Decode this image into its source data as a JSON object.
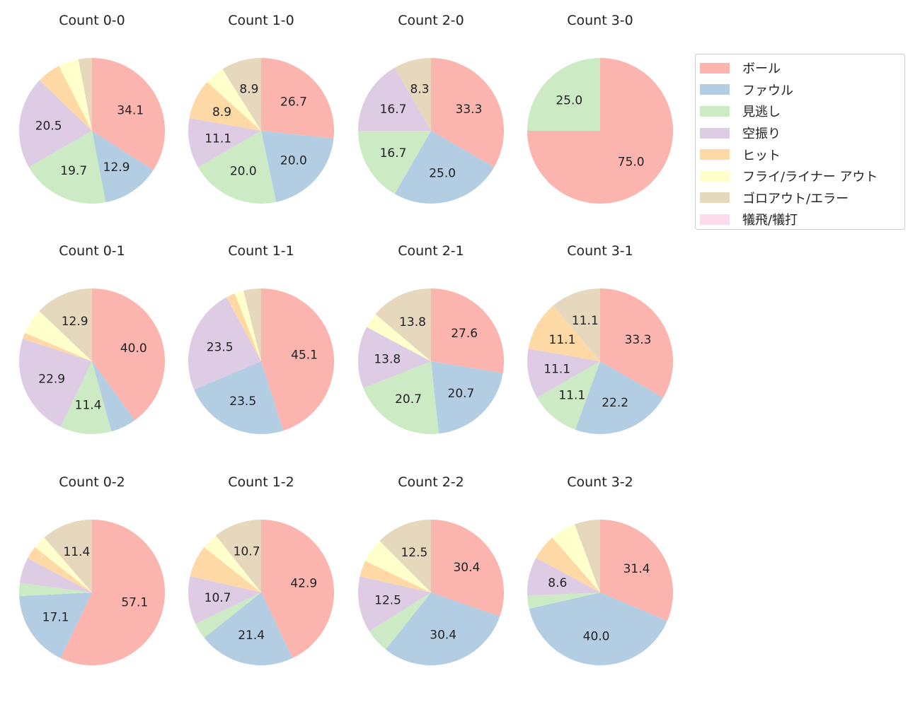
{
  "chart_data": {
    "type": "pie",
    "colors": [
      "#fbb4ae",
      "#b3cde3",
      "#ccebc5",
      "#decbe4",
      "#fed9a6",
      "#ffffcc",
      "#e5d8bd",
      "#fddaec"
    ],
    "categories": [
      "ボール",
      "ファウル",
      "見逃し",
      "空振り",
      "ヒット",
      "フライ/ライナー アウト",
      "ゴロアウト/エラー",
      "犠飛/犠打"
    ],
    "legend_position": "right",
    "charts": [
      {
        "title": "Count 0-0",
        "values": [
          34.1,
          12.9,
          19.7,
          20.5,
          5.3,
          4.5,
          3.0,
          0
        ]
      },
      {
        "title": "Count 1-0",
        "values": [
          26.7,
          20.0,
          20.0,
          11.1,
          8.9,
          4.4,
          8.9,
          0
        ]
      },
      {
        "title": "Count 2-0",
        "values": [
          33.3,
          25.0,
          16.7,
          16.7,
          0,
          0,
          8.3,
          0
        ]
      },
      {
        "title": "Count 3-0",
        "values": [
          75.0,
          0,
          25.0,
          0,
          0,
          0,
          0,
          0
        ]
      },
      {
        "title": "Count 0-1",
        "values": [
          40.0,
          5.7,
          11.4,
          22.9,
          1.4,
          5.7,
          12.9,
          0
        ]
      },
      {
        "title": "Count 1-1",
        "values": [
          45.1,
          23.5,
          0,
          23.5,
          2.0,
          2.0,
          3.9,
          0
        ]
      },
      {
        "title": "Count 2-1",
        "values": [
          27.6,
          20.7,
          20.7,
          13.8,
          0,
          3.4,
          13.8,
          0
        ]
      },
      {
        "title": "Count 3-1",
        "values": [
          33.3,
          22.2,
          11.1,
          11.1,
          11.1,
          0,
          11.1,
          0
        ]
      },
      {
        "title": "Count 0-2",
        "values": [
          57.1,
          17.1,
          2.9,
          5.7,
          2.9,
          2.9,
          11.4,
          0
        ]
      },
      {
        "title": "Count 1-2",
        "values": [
          42.9,
          21.4,
          3.6,
          10.7,
          7.1,
          3.6,
          10.7,
          0
        ]
      },
      {
        "title": "Count 2-2",
        "values": [
          30.4,
          30.4,
          5.4,
          12.5,
          3.6,
          5.4,
          12.5,
          0
        ]
      },
      {
        "title": "Count 3-2",
        "values": [
          31.4,
          40.0,
          2.9,
          8.6,
          5.7,
          5.7,
          5.7,
          0
        ]
      }
    ]
  }
}
